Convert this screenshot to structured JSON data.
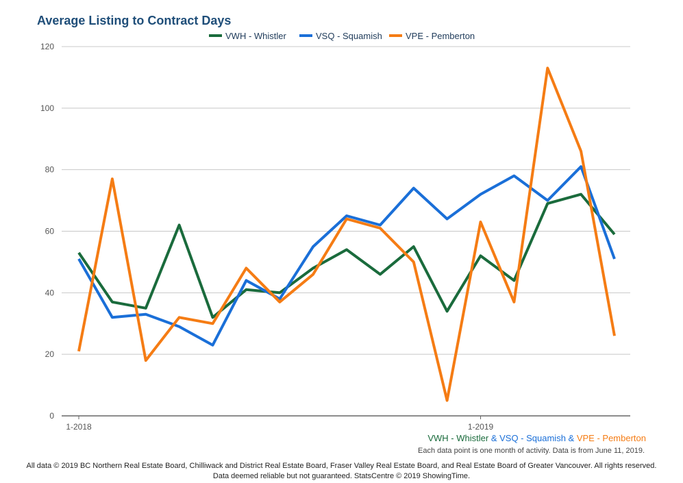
{
  "chart_data": {
    "type": "line",
    "title": "Average Listing to Contract Days",
    "xlabel": "",
    "ylabel": "",
    "ylim": [
      0,
      120
    ],
    "yticks": [
      0,
      20,
      40,
      60,
      80,
      100,
      120
    ],
    "x": [
      "1-2018",
      "2-2018",
      "3-2018",
      "4-2018",
      "5-2018",
      "6-2018",
      "7-2018",
      "8-2018",
      "9-2018",
      "10-2018",
      "11-2018",
      "12-2018",
      "1-2019",
      "2-2019",
      "3-2019",
      "4-2019",
      "5-2019"
    ],
    "x_tick_labels": [
      {
        "index": 0,
        "label": "1-2018"
      },
      {
        "index": 12,
        "label": "1-2019"
      }
    ],
    "grid": true,
    "legend_position": "top-center",
    "series": [
      {
        "name": "VWH - Whistler",
        "color": "#1a6b3c",
        "values": [
          53,
          37,
          35,
          62,
          32,
          41,
          40,
          48,
          54,
          46,
          55,
          34,
          52,
          44,
          69,
          72,
          59
        ]
      },
      {
        "name": "VSQ - Squamish",
        "color": "#1a6fd8",
        "values": [
          51,
          32,
          33,
          29,
          23,
          44,
          38,
          55,
          65,
          62,
          74,
          64,
          72,
          78,
          70,
          81,
          51
        ]
      },
      {
        "name": "VPE - Pemberton",
        "color": "#f57c14",
        "values": [
          21,
          77,
          18,
          32,
          30,
          48,
          37,
          46,
          64,
          61,
          50,
          5,
          63,
          37,
          113,
          86,
          26
        ]
      }
    ]
  },
  "source": {
    "parts": [
      {
        "text": "VWH - Whistler",
        "color": "#1a6b3c"
      },
      {
        "text": " & ",
        "color": "#1a6fd8"
      },
      {
        "text": "VSQ - Squamish",
        "color": "#1a6fd8"
      },
      {
        "text": " & ",
        "color": "#1a6fd8"
      },
      {
        "text": "VPE - Pemberton",
        "color": "#f57c14"
      }
    ]
  },
  "note": "Each data point is one month of activity. Data is from June 11, 2019.",
  "footer": {
    "line1": "All data © 2019 BC Northern Real Estate Board, Chilliwack and District Real Estate Board, Fraser Valley Real Estate Board, and Real Estate Board of Greater Vancouver. All rights reserved.",
    "line2": "Data deemed reliable but not guaranteed. StatsCentre © 2019 ShowingTime."
  }
}
